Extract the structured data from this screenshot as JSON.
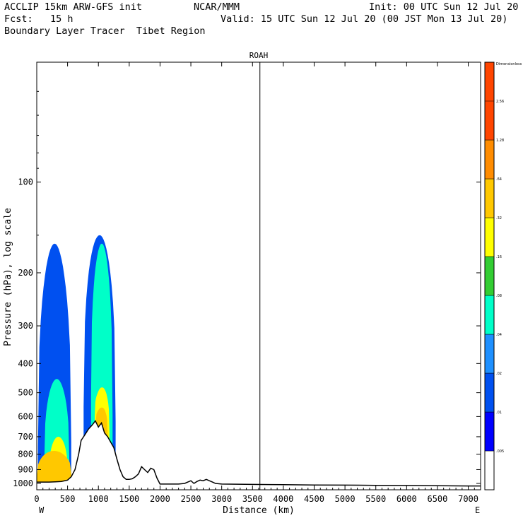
{
  "header": {
    "line1_left": "ACCLIP 15km ARW-GFS init",
    "line1_mid": "NCAR/MMM",
    "line1_right": "Init: 00 UTC Sun 12 Jul 20",
    "line2_left": "Fcst:   15 h",
    "line2_right": "Valid: 15 UTC Sun 12 Jul 20 (00 JST Mon 13 Jul 20)",
    "line3": "Boundary Layer Tracer  Tibet Region"
  },
  "chart_data": {
    "type": "area",
    "title": "ROAH",
    "xlabel": "Distance (km)",
    "ylabel": "Pressure (hPa), log scale",
    "x_left_label": "W",
    "x_right_label": "E",
    "xlim": [
      0,
      7200
    ],
    "ylim": [
      1050,
      40
    ],
    "y_scale": "log",
    "x_ticks": [
      0,
      500,
      1000,
      1500,
      2000,
      2500,
      3000,
      3500,
      4000,
      4500,
      5000,
      5500,
      6000,
      6500,
      7000
    ],
    "y_ticks": [
      100,
      200,
      300,
      400,
      500,
      600,
      700,
      800,
      900,
      1000
    ],
    "vertical_marker_x": 3620,
    "colorbar": {
      "units_label": "Dimensionless",
      "levels": [
        ".005",
        ".01",
        ".02",
        ".04",
        ".08",
        ".16",
        ".32",
        ".64",
        "1.28",
        "2.56"
      ],
      "colors": [
        "#ffffff",
        "#0000ff",
        "#0050f0",
        "#1e90ff",
        "#00ffc8",
        "#32cd32",
        "#ffff00",
        "#ffc800",
        "#ff8c00",
        "#ff4500"
      ]
    },
    "terrain_surface": {
      "x": [
        0,
        100,
        200,
        300,
        400,
        500,
        560,
        620,
        680,
        720,
        780,
        840,
        900,
        950,
        1000,
        1050,
        1100,
        1150,
        1200,
        1250,
        1300,
        1350,
        1400,
        1450,
        1500,
        1550,
        1600,
        1650,
        1700,
        1750,
        1800,
        1850,
        1900,
        1950,
        2000,
        2100,
        2200,
        2300,
        2400,
        2450,
        2500,
        2550,
        2600,
        2650,
        2700,
        2750,
        2800,
        2850,
        2900,
        3000,
        3500,
        4000,
        4500,
        5000,
        5500,
        6000,
        6500,
        7000,
        7200
      ],
      "p": [
        990,
        990,
        990,
        988,
        985,
        975,
        950,
        900,
        800,
        720,
        690,
        660,
        640,
        620,
        650,
        630,
        680,
        700,
        730,
        760,
        830,
        900,
        950,
        970,
        970,
        965,
        950,
        930,
        880,
        900,
        920,
        890,
        900,
        960,
        1005,
        1005,
        1005,
        1005,
        1000,
        990,
        980,
        1000,
        985,
        975,
        980,
        970,
        980,
        990,
        1000,
        1005,
        1008,
        1010,
        1012,
        1013,
        1015,
        1016,
        1018,
        1020,
        1020
      ]
    },
    "tracer_plumes": [
      {
        "level": ".005",
        "x_min": 0,
        "x_max": 650,
        "p_top": 140
      },
      {
        "level": ".005",
        "x_min": 680,
        "x_max": 1330,
        "p_top": 140
      },
      {
        "level": ".02",
        "x_min": 20,
        "x_max": 560,
        "p_top": 160
      },
      {
        "level": ".02",
        "x_min": 760,
        "x_max": 1280,
        "p_top": 150
      },
      {
        "level": ".08",
        "x_min": 120,
        "x_max": 530,
        "p_top": 450
      },
      {
        "level": ".08",
        "x_min": 880,
        "x_max": 1230,
        "p_top": 160
      },
      {
        "level": ".32",
        "x_min": 200,
        "x_max": 500,
        "p_top": 700
      },
      {
        "level": ".32",
        "x_min": 940,
        "x_max": 1180,
        "p_top": 480
      },
      {
        "level": ".64",
        "x_min": 0,
        "x_max": 560,
        "p_top": 780
      },
      {
        "level": ".64",
        "x_min": 960,
        "x_max": 1150,
        "p_top": 560
      }
    ]
  }
}
